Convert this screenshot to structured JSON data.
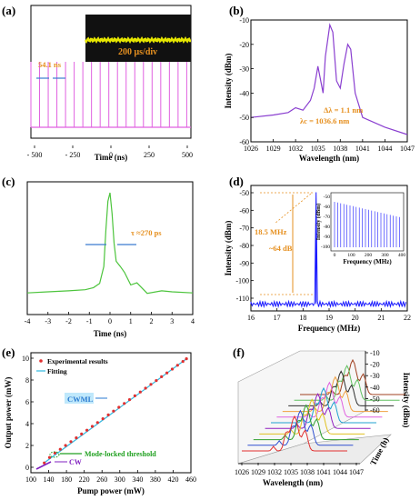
{
  "panels": {
    "a": {
      "label": "(a)",
      "xlabel": "Time (ns)",
      "xticks": [
        "- 500",
        "- 250",
        "0",
        "250",
        "500"
      ],
      "spacing": "54.1 ns",
      "inset_label": "200  μs/div"
    },
    "b": {
      "label": "(b)",
      "ylabel": "Intensity (dBm)",
      "xlabel": "Wavelength (nm)",
      "xticks": [
        "1026",
        "1029",
        "1032",
        "1035",
        "1038",
        "1041",
        "1044",
        "1047"
      ],
      "yticks": [
        "-10",
        "-20",
        "-30",
        "-40",
        "-50",
        "-60"
      ],
      "ann1": "Δλ = 1.1 nm",
      "ann2": "λc = 1036.6 nm"
    },
    "c": {
      "label": "(c)",
      "xlabel": "Time (ns)",
      "xticks": [
        "-4",
        "-3",
        "-2",
        "-1",
        "0",
        "1",
        "2",
        "3",
        "4"
      ],
      "ann": "τ ≈270 ps"
    },
    "d": {
      "label": "(d)",
      "ylabel": "Intensity (dBm)",
      "xlabel": "Frequency (MHz)",
      "xticks": [
        "16",
        "17",
        "18",
        "19",
        "20",
        "21",
        "22"
      ],
      "yticks": [
        "-50",
        "-60",
        "-70",
        "-80",
        "-90",
        "-100",
        "-110"
      ],
      "freq": "18.5 MHz",
      "snr": "~64 dB",
      "inset_ylabel": "Intensity (dBm)",
      "inset_xlabel": "Frequency (MHz)",
      "inset_xticks": [
        "0",
        "100",
        "200",
        "300",
        "400"
      ],
      "inset_yticks": [
        "-50",
        "-60",
        "-70",
        "-80",
        "-90",
        "-100"
      ]
    },
    "e": {
      "label": "(e)",
      "ylabel": "Output power (mW)",
      "xlabel": "Pump power (mW)",
      "xticks": [
        "100",
        "140",
        "180",
        "220",
        "260",
        "300",
        "340",
        "380",
        "420",
        "460"
      ],
      "yticks": [
        "0",
        "2",
        "4",
        "6",
        "8",
        "10"
      ],
      "legend1": "Experimental results",
      "legend2": "Fitting",
      "cwml": "CWML",
      "threshold": "Mode-locked threshold",
      "cw": "CW"
    },
    "f": {
      "label": "(f)",
      "zlabel": "Intensity (dBm)",
      "xlabel": "Wavelength (nm)",
      "ylabel": "Time (h)",
      "xticks": [
        "1026",
        "1029",
        "1032",
        "1035",
        "1038",
        "1041",
        "1044",
        "1047"
      ],
      "zticks": [
        "-10",
        "-20",
        "-30",
        "-40",
        "-50",
        "-60"
      ]
    }
  },
  "colors": {
    "a": "#e060e0",
    "b": "#8a3fd0",
    "c": "#4cc43c",
    "d": "#1a1aff",
    "annot": "#e69020",
    "scatter": "#e03030",
    "fit": "#30b8e0",
    "thresh": "#20a020",
    "cw": "#8020c0"
  },
  "chart_data": [
    {
      "type": "line",
      "panel": "a",
      "description": "pulse train",
      "x_range": [
        -500,
        500
      ],
      "period_ns": 54.1,
      "xlabel": "Time (ns)"
    },
    {
      "type": "line",
      "panel": "b",
      "xlabel": "Wavelength (nm)",
      "ylabel": "Intensity (dBm)",
      "xlim": [
        1026,
        1047
      ],
      "ylim": [
        -60,
        -10
      ],
      "x": [
        1026,
        1029,
        1031,
        1032,
        1033,
        1034,
        1034.5,
        1035,
        1035.7,
        1036,
        1036.6,
        1037,
        1037.5,
        1038,
        1038.5,
        1039,
        1039.4,
        1040,
        1041,
        1044,
        1047
      ],
      "y": [
        -50,
        -49,
        -48,
        -46,
        -47,
        -43,
        -38,
        -29,
        -40,
        -25,
        -12,
        -15,
        -35,
        -38,
        -28,
        -20,
        -22,
        -40,
        -50,
        -54,
        -57
      ]
    },
    {
      "type": "line",
      "panel": "c",
      "xlabel": "Time (ns)",
      "xlim": [
        -4,
        4
      ],
      "x": [
        -4,
        -3,
        -2,
        -1.2,
        -0.8,
        -0.5,
        -0.3,
        -0.2,
        -0.1,
        0,
        0.1,
        0.2,
        0.3,
        0.5,
        0.7,
        1.0,
        1.3,
        1.8,
        2.5,
        3,
        4
      ],
      "y": [
        0.05,
        0.06,
        0.07,
        0.08,
        0.1,
        0.14,
        0.3,
        0.65,
        0.92,
        1.0,
        0.8,
        0.52,
        0.35,
        0.3,
        0.22,
        0.16,
        0.12,
        0.08,
        0.07,
        0.06,
        0.05
      ]
    },
    {
      "type": "line",
      "panel": "d",
      "xlabel": "Frequency (MHz)",
      "ylabel": "Intensity (dBm)",
      "xlim": [
        16,
        22
      ],
      "ylim": [
        -118,
        -45
      ],
      "peak_x": 18.5,
      "peak_y": -49,
      "noise_floor": -114
    },
    {
      "type": "scatter",
      "panel": "e",
      "xlabel": "Pump power (mW)",
      "ylabel": "Output power (mW)",
      "xlim": [
        100,
        460
      ],
      "ylim": [
        -0.5,
        10.5
      ],
      "x": [
        130,
        142,
        154,
        166,
        178,
        190,
        202,
        214,
        226,
        238,
        250,
        262,
        274,
        286,
        298,
        310,
        322,
        334,
        346,
        358,
        370,
        382,
        394,
        406,
        418,
        430,
        442,
        450
      ],
      "y": [
        0.4,
        0.9,
        1.3,
        1.65,
        2.0,
        2.35,
        2.7,
        3.05,
        3.4,
        3.75,
        4.1,
        4.45,
        4.8,
        5.15,
        5.5,
        5.85,
        6.2,
        6.55,
        6.9,
        7.25,
        7.6,
        7.95,
        8.3,
        8.65,
        9.0,
        9.35,
        9.7,
        9.95
      ]
    },
    {
      "type": "line",
      "panel": "f",
      "xlabel": "Wavelength (nm)",
      "zlabel": "Intensity (dBm)",
      "ylabel": "Time (h)",
      "n_traces": 11
    }
  ]
}
